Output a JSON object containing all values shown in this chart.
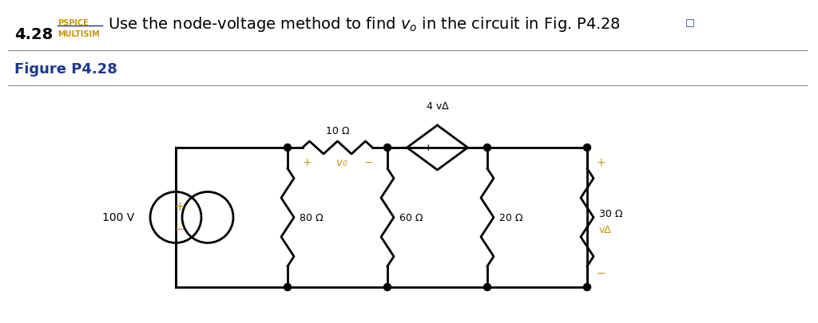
{
  "title_number": "4.28",
  "pspice_text": "PSPICE",
  "multisim_text": "MULTISIM",
  "main_text": "Use the node-voltage method to find",
  "v_o_label": "v_o",
  "end_text": "in the circuit in Fig. P4.28",
  "figure_label": "Figure P4.28",
  "source_voltage": "100 V",
  "resistors": [
    "80 Ω",
    "60 Ω",
    "20 Ω",
    "30 Ω",
    "10 Ω"
  ],
  "dep_source_label": "4 v∆",
  "v_delta_label": "v∆",
  "v_o_annot": "v₀",
  "bg_color": "#ffffff",
  "text_color": "#000000",
  "blue_color": "#1a3a8c",
  "gold_color": "#c8960c",
  "line_color": "#000000",
  "line_width": 2.0,
  "font_size_title": 14,
  "font_size_label": 11,
  "font_size_fig": 13
}
